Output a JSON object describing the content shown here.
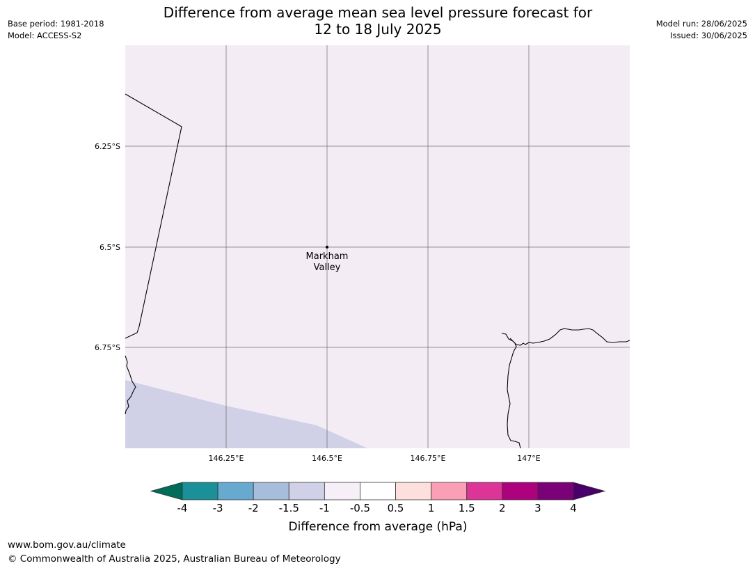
{
  "header": {
    "title_line1": "Difference from average mean sea level pressure forecast for",
    "title_line2": "12 to 18 July 2025",
    "base_period": "Base period: 1981-2018",
    "model": "Model: ACCESS-S2",
    "model_run": "Model run: 28/06/2025",
    "issued": "Issued: 30/06/2025"
  },
  "map": {
    "lat_labels": [
      "6.25°S",
      "6.5°S",
      "6.75°S"
    ],
    "lon_labels": [
      "146.25°E",
      "146.5°E",
      "146.75°E",
      "147°E"
    ],
    "place": {
      "name_line1": "Markham",
      "name_line2": "Valley",
      "lat": -6.5,
      "lon": 146.5
    },
    "background_color": "#f4ecf5",
    "low_region_color": "#d0d1e6",
    "extent": {
      "lon_min": 146.0,
      "lon_max": 147.25,
      "lat_min": -7.0,
      "lat_max": -6.0
    }
  },
  "colorbar": {
    "label": "Difference from average (hPa)",
    "ticks": [
      "-4",
      "-3",
      "-2",
      "-1.5",
      "-1",
      "-0.5",
      "0.5",
      "1",
      "1.5",
      "2",
      "3",
      "4"
    ],
    "under_color": "#016c59",
    "over_color": "#49006a",
    "colors": [
      "#1c9099",
      "#67a9cf",
      "#a6bddb",
      "#d0d1e6",
      "#f6eff7",
      "#ffffff",
      "#fde0dd",
      "#fa9fb5",
      "#dd3497",
      "#ae017e",
      "#7a0177"
    ]
  },
  "footer": {
    "url": "www.bom.gov.au/climate",
    "copyright": "© Commonwealth of Australia 2025, Australian Bureau of Meteorology"
  }
}
